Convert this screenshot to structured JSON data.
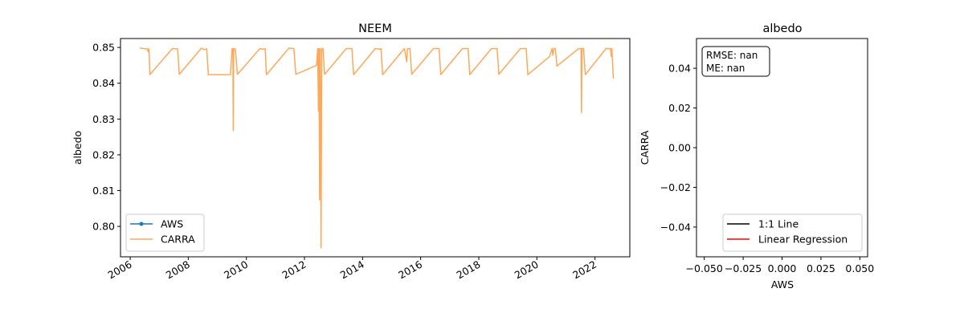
{
  "chart_data": [
    {
      "type": "line",
      "title": "NEEM",
      "xlabel": "",
      "ylabel": "albedo",
      "x_type": "date",
      "xlim": [
        "2005-09-01",
        "2023-03-15"
      ],
      "ylim": [
        0.7915,
        0.8525
      ],
      "x_ticks": [
        "2006-01-01",
        "2008-01-01",
        "2010-01-01",
        "2012-01-01",
        "2014-01-01",
        "2016-01-01",
        "2018-01-01",
        "2020-01-01",
        "2022-01-01"
      ],
      "x_tick_labels": [
        "2006",
        "2008",
        "2010",
        "2012",
        "2014",
        "2016",
        "2018",
        "2020",
        "2022"
      ],
      "y_ticks": [
        0.8,
        0.81,
        0.82,
        0.83,
        0.84,
        0.85
      ],
      "y_tick_labels": [
        "0.80",
        "0.81",
        "0.82",
        "0.83",
        "0.84",
        "0.85"
      ],
      "legend_position": "lower-left",
      "legend": [
        "AWS",
        "CARRA"
      ],
      "series": [
        {
          "name": "AWS",
          "color": "#1f77b4",
          "marker": "dot",
          "points": []
        },
        {
          "name": "CARRA",
          "color": "#ffa85a",
          "points": [
            [
              "2006-05-01",
              0.8498
            ],
            [
              "2006-08-01",
              0.8496
            ],
            [
              "2006-08-15",
              0.8488
            ],
            [
              "2006-08-25",
              0.8497
            ],
            [
              "2006-09-05",
              0.8424
            ],
            [
              "2007-06-15",
              0.8497
            ],
            [
              "2007-08-20",
              0.8496
            ],
            [
              "2007-09-10",
              0.8425
            ],
            [
              "2008-06-15",
              0.8498
            ],
            [
              "2008-07-20",
              0.8494
            ],
            [
              "2008-08-20",
              0.8496
            ],
            [
              "2008-09-10",
              0.8424
            ],
            [
              "2009-06-15",
              0.8424
            ],
            [
              "2009-07-05",
              0.8497
            ],
            [
              "2009-07-15",
              0.8496
            ],
            [
              "2009-07-20",
              0.8268
            ],
            [
              "2009-07-25",
              0.8497
            ],
            [
              "2009-08-15",
              0.8496
            ],
            [
              "2009-09-10",
              0.8425
            ],
            [
              "2010-06-20",
              0.8497
            ],
            [
              "2010-08-10",
              0.8495
            ],
            [
              "2010-08-25",
              0.8497
            ],
            [
              "2010-09-10",
              0.8424
            ],
            [
              "2011-06-20",
              0.8498
            ],
            [
              "2011-08-20",
              0.8497
            ],
            [
              "2011-09-15",
              0.8425
            ],
            [
              "2012-06-01",
              0.845
            ],
            [
              "2012-06-15",
              0.8497
            ],
            [
              "2012-06-25",
              0.8322
            ],
            [
              "2012-07-01",
              0.8497
            ],
            [
              "2012-07-10",
              0.8074
            ],
            [
              "2012-07-15",
              0.8497
            ],
            [
              "2012-07-22",
              0.8325
            ],
            [
              "2012-07-28",
              0.794
            ],
            [
              "2012-08-05",
              0.8497
            ],
            [
              "2012-08-20",
              0.8497
            ],
            [
              "2012-09-10",
              0.8425
            ],
            [
              "2013-06-10",
              0.8497
            ],
            [
              "2013-08-20",
              0.8497
            ],
            [
              "2013-09-10",
              0.8424
            ],
            [
              "2014-06-10",
              0.8497
            ],
            [
              "2014-08-10",
              0.8495
            ],
            [
              "2014-08-20",
              0.8497
            ],
            [
              "2014-09-10",
              0.8424
            ],
            [
              "2015-06-10",
              0.8497
            ],
            [
              "2015-07-10",
              0.846
            ],
            [
              "2015-07-20",
              0.8497
            ],
            [
              "2015-08-20",
              0.8497
            ],
            [
              "2015-09-10",
              0.8425
            ],
            [
              "2016-06-10",
              0.8497
            ],
            [
              "2016-08-20",
              0.8497
            ],
            [
              "2016-09-10",
              0.8424
            ],
            [
              "2017-06-10",
              0.8497
            ],
            [
              "2017-08-20",
              0.8497
            ],
            [
              "2017-09-10",
              0.8424
            ],
            [
              "2018-06-10",
              0.8497
            ],
            [
              "2018-08-20",
              0.8497
            ],
            [
              "2018-09-10",
              0.8425
            ],
            [
              "2019-06-10",
              0.8497
            ],
            [
              "2019-08-20",
              0.8497
            ],
            [
              "2019-09-10",
              0.8424
            ],
            [
              "2020-06-10",
              0.8475
            ],
            [
              "2020-07-10",
              0.8497
            ],
            [
              "2020-07-20",
              0.8478
            ],
            [
              "2020-08-01",
              0.8497
            ],
            [
              "2020-08-20",
              0.8497
            ],
            [
              "2020-09-10",
              0.8448
            ],
            [
              "2021-06-10",
              0.8497
            ],
            [
              "2021-07-10",
              0.8497
            ],
            [
              "2021-07-15",
              0.8318
            ],
            [
              "2021-07-22",
              0.8497
            ],
            [
              "2021-08-10",
              0.8497
            ],
            [
              "2021-09-01",
              0.8424
            ],
            [
              "2022-05-20",
              0.8497
            ],
            [
              "2022-07-15",
              0.8497
            ],
            [
              "2022-07-25",
              0.8475
            ],
            [
              "2022-08-01",
              0.8497
            ],
            [
              "2022-08-20",
              0.8413
            ]
          ]
        }
      ]
    },
    {
      "type": "scatter",
      "title": "albedo",
      "xlabel": "AWS",
      "ylabel": "CARRA",
      "xlim": [
        -0.055,
        0.055
      ],
      "ylim": [
        -0.055,
        0.055
      ],
      "x_ticks": [
        -0.05,
        -0.025,
        0.0,
        0.025,
        0.05
      ],
      "x_tick_labels": [
        "−0.050",
        "−0.025",
        "0.000",
        "0.025",
        "0.050"
      ],
      "y_ticks": [
        -0.04,
        -0.02,
        0.0,
        0.02,
        0.04
      ],
      "y_tick_labels": [
        "−0.04",
        "−0.02",
        "0.00",
        "0.02",
        "0.04"
      ],
      "legend_position": "lower-right",
      "legend": [
        {
          "label": "1:1 Line",
          "color": "#000000"
        },
        {
          "label": "Linear Regression",
          "color": "#ff0000"
        }
      ],
      "stats_lines": [
        "RMSE: nan",
        "ME: nan"
      ],
      "points": []
    }
  ]
}
